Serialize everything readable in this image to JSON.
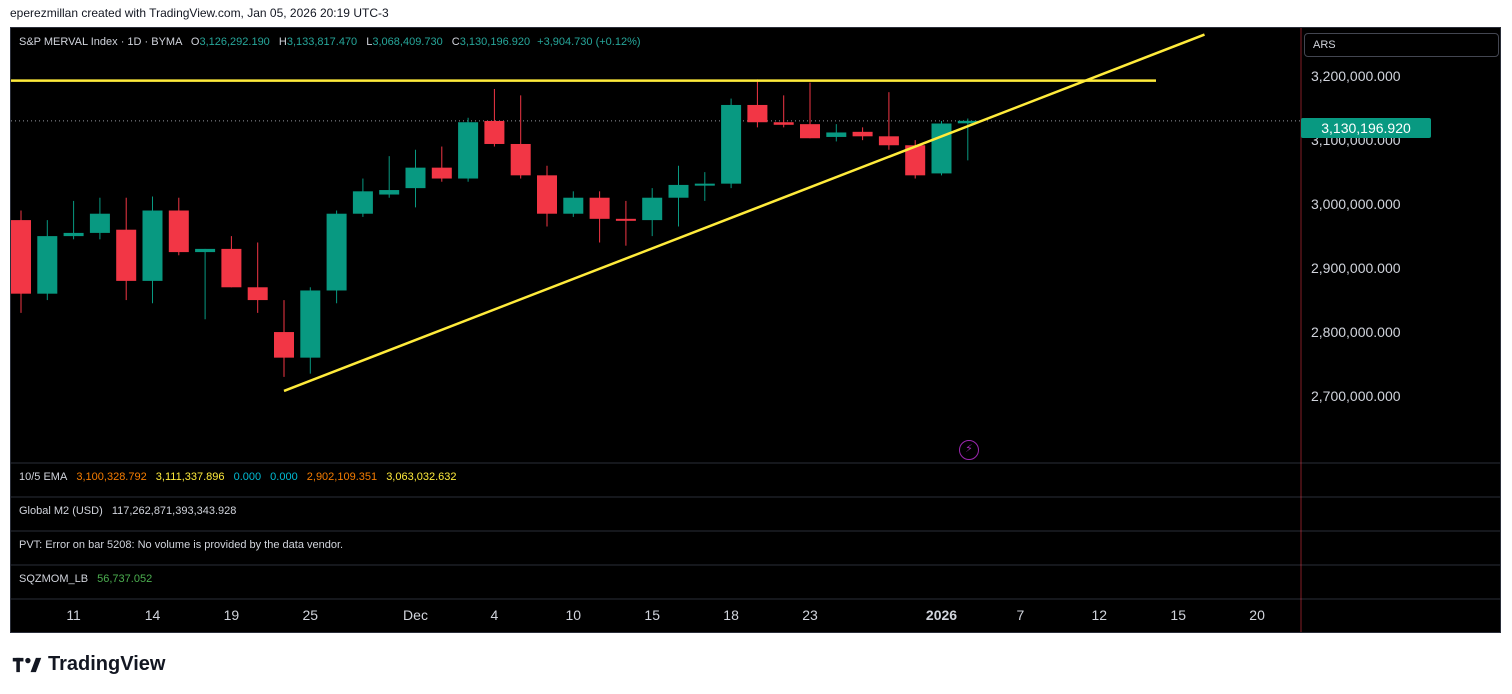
{
  "header": {
    "attribution": "eperezmillan created with TradingView.com, Jan 05, 2026 20:19 UTC-3"
  },
  "legend": {
    "symbol": "S&P MERVAL Index · 1D · BYMA",
    "o_label": "O",
    "o_value": "3,126,292.190",
    "h_label": "H",
    "h_value": "3,133,817.470",
    "l_label": "L",
    "l_value": "3,068,409.730",
    "c_label": "C",
    "c_value": "3,130,196.920",
    "change": "+3,904.730 (+0.12%)"
  },
  "currency": "ARS",
  "last_price_tag": "3,130,196.920",
  "indicators": {
    "ema": {
      "name": "10/5 EMA",
      "values": [
        "3,100,328.792",
        "3,111,337.896",
        "0.000",
        "0.000",
        "2,902,109.351",
        "3,063,032.632"
      ],
      "colors": [
        "#f57c00",
        "#ffeb3b",
        "#00bcd4",
        "#00bcd4",
        "#f57c00",
        "#ffeb3b"
      ]
    },
    "m2": {
      "name": "Global M2 (USD)",
      "value": "117,262,871,393,343.928"
    },
    "pvt": {
      "text": "PVT: Error on bar 5208: No volume is provided by the data vendor."
    },
    "sqz": {
      "name": "SQZMOM_LB",
      "value": "56,737.052",
      "color": "#4caf50"
    }
  },
  "colors": {
    "up": "#089981",
    "down": "#f23645",
    "trendline": "#ffeb3b",
    "background": "#000000"
  },
  "footer": {
    "brand": "TradingView"
  },
  "chart_data": {
    "type": "candlestick",
    "ylim": [
      2600000,
      3280000
    ],
    "y_ticks": [
      2700000,
      2800000,
      2900000,
      3000000,
      3100000,
      3200000
    ],
    "y_tick_labels": [
      "2,700,000.000",
      "2,800,000.000",
      "2,900,000.000",
      "3,000,000.000",
      "3,100,000.000",
      "3,200,000.000"
    ],
    "x_tick_labels": [
      "11",
      "14",
      "19",
      "25",
      "Dec",
      "4",
      "10",
      "15",
      "18",
      "23",
      "2026",
      "7",
      "12",
      "15",
      "20"
    ],
    "x_tick_bar_index": [
      2,
      5,
      8,
      11,
      15,
      18,
      21,
      24,
      27,
      30,
      35,
      38,
      41,
      44,
      47
    ],
    "bold_ticks": [
      "2026"
    ],
    "candles": [
      {
        "o": 2975000,
        "h": 2990000,
        "l": 2830000,
        "c": 2860000
      },
      {
        "o": 2860000,
        "h": 2975000,
        "l": 2850000,
        "c": 2950000
      },
      {
        "o": 2950000,
        "h": 3005000,
        "l": 2945000,
        "c": 2955000
      },
      {
        "o": 2955000,
        "h": 3010000,
        "l": 2945000,
        "c": 2985000
      },
      {
        "o": 2960000,
        "h": 3010000,
        "l": 2850000,
        "c": 2880000
      },
      {
        "o": 2880000,
        "h": 3012000,
        "l": 2845000,
        "c": 2990000
      },
      {
        "o": 2990000,
        "h": 3010000,
        "l": 2920000,
        "c": 2925000
      },
      {
        "o": 2925000,
        "h": 2930000,
        "l": 2820000,
        "c": 2930000
      },
      {
        "o": 2930000,
        "h": 2950000,
        "l": 2870000,
        "c": 2870000
      },
      {
        "o": 2870000,
        "h": 2940000,
        "l": 2830000,
        "c": 2850000
      },
      {
        "o": 2800000,
        "h": 2850000,
        "l": 2730000,
        "c": 2760000
      },
      {
        "o": 2760000,
        "h": 2870000,
        "l": 2735000,
        "c": 2865000
      },
      {
        "o": 2865000,
        "h": 2990000,
        "l": 2845000,
        "c": 2985000
      },
      {
        "o": 2985000,
        "h": 3040000,
        "l": 2980000,
        "c": 3020000
      },
      {
        "o": 3015000,
        "h": 3075000,
        "l": 3010000,
        "c": 3022000
      },
      {
        "o": 3025000,
        "h": 3085000,
        "l": 2995000,
        "c": 3057000
      },
      {
        "o": 3057000,
        "h": 3090000,
        "l": 3035000,
        "c": 3040000
      },
      {
        "o": 3040000,
        "h": 3135000,
        "l": 3035000,
        "c": 3128000
      },
      {
        "o": 3130000,
        "h": 3180000,
        "l": 3090000,
        "c": 3094000
      },
      {
        "o": 3094000,
        "h": 3170000,
        "l": 3040000,
        "c": 3045000
      },
      {
        "o": 3045000,
        "h": 3060000,
        "l": 2965000,
        "c": 2985000
      },
      {
        "o": 2985000,
        "h": 3020000,
        "l": 2980000,
        "c": 3010000
      },
      {
        "o": 3010000,
        "h": 3020000,
        "l": 2940000,
        "c": 2977000
      },
      {
        "o": 2977000,
        "h": 3005000,
        "l": 2935000,
        "c": 2975000
      },
      {
        "o": 2975000,
        "h": 3025000,
        "l": 2950000,
        "c": 3010000
      },
      {
        "o": 3010000,
        "h": 3060000,
        "l": 2965000,
        "c": 3030000
      },
      {
        "o": 3030000,
        "h": 3050000,
        "l": 3005000,
        "c": 3032000
      },
      {
        "o": 3032000,
        "h": 3165000,
        "l": 3025000,
        "c": 3155000
      },
      {
        "o": 3155000,
        "h": 3195000,
        "l": 3120000,
        "c": 3128000
      },
      {
        "o": 3128000,
        "h": 3170000,
        "l": 3120000,
        "c": 3124000
      },
      {
        "o": 3125000,
        "h": 3190000,
        "l": 3103000,
        "c": 3103000
      },
      {
        "o": 3105000,
        "h": 3125000,
        "l": 3098000,
        "c": 3112000
      },
      {
        "o": 3113000,
        "h": 3120000,
        "l": 3100000,
        "c": 3106000
      },
      {
        "o": 3106000,
        "h": 3175000,
        "l": 3085000,
        "c": 3092000
      },
      {
        "o": 3092000,
        "h": 3100000,
        "l": 3040000,
        "c": 3045000
      },
      {
        "o": 3048000,
        "h": 3130000,
        "l": 3045000,
        "c": 3126000
      },
      {
        "o": 3126292,
        "h": 3133817,
        "l": 3068409,
        "c": 3130197
      }
    ],
    "horizontal_line": 3193000,
    "trendline": {
      "from_bar": 10,
      "from_price": 2708000,
      "to_bar": 45,
      "to_price": 3265000
    }
  }
}
